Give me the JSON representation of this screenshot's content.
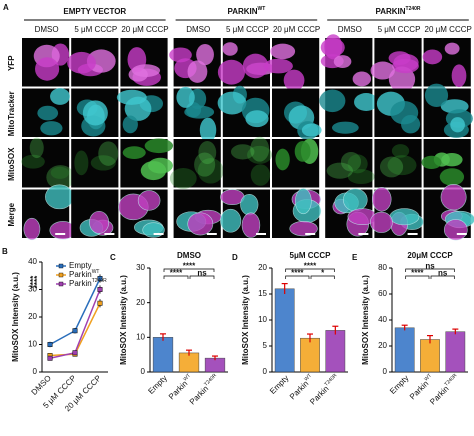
{
  "panel_a": {
    "label": "A",
    "groups": [
      {
        "text": "EMPTY VECTOR"
      },
      {
        "text": "PARKIN",
        "sup": "WT"
      },
      {
        "text": "PARKIN",
        "sup": "T240R"
      }
    ],
    "columns": [
      "DMSO",
      "5 μM CCCP",
      "20 μM CCCP"
    ],
    "rows": [
      "YFP",
      "MitoTracker",
      "MitoSOX",
      "Merge"
    ]
  },
  "chart_data": [
    {
      "type": "line",
      "label": "B",
      "categories": [
        "DMSO",
        "5 μM CCCP",
        "20 μM CCCP"
      ],
      "series": [
        {
          "name": "Empty",
          "color": "#2a6ebb",
          "values": [
            10,
            15,
            34
          ],
          "errors": [
            1,
            1,
            1.5
          ]
        },
        {
          "name": "Parkin",
          "sup": "WT",
          "color": "#f0a020",
          "values": [
            6,
            6.5,
            25
          ],
          "errors": [
            0.8,
            0.8,
            1.5
          ]
        },
        {
          "name": "Parkin",
          "sup": "T240R",
          "color": "#a040b0",
          "values": [
            5,
            7,
            30
          ],
          "errors": [
            0.7,
            0.8,
            1.5
          ]
        }
      ],
      "ylim": [
        0,
        40
      ],
      "yticks": [
        0,
        10,
        20,
        30,
        40
      ],
      "ylabel": "MitoSOX Intensity (a.u.)",
      "annotations": [
        "****",
        "****"
      ]
    },
    {
      "type": "bar",
      "label": "C",
      "title": "DMSO",
      "categories": [
        "Empty",
        "Parkin",
        "Parkin"
      ],
      "category_sups": [
        null,
        "WT",
        "T240R"
      ],
      "colors": [
        "#3a78c8",
        "#f5a623",
        "#9b3fb5"
      ],
      "values": [
        10,
        5.5,
        4
      ],
      "errors": [
        1,
        0.8,
        0.6
      ],
      "ylim": [
        0,
        30
      ],
      "yticks": [
        0,
        10,
        20,
        30
      ],
      "ylabel": "MitoSOX Intensity (a.u.)",
      "significance": [
        "****",
        "ns",
        "****"
      ]
    },
    {
      "type": "bar",
      "label": "D",
      "title": "5μM CCCP",
      "categories": [
        "Empty",
        "Parkin",
        "Parkin"
      ],
      "category_sups": [
        null,
        "WT",
        "T240R"
      ],
      "colors": [
        "#3a78c8",
        "#f5a623",
        "#9b3fb5"
      ],
      "values": [
        16,
        6.5,
        8
      ],
      "errors": [
        1,
        0.8,
        0.8
      ],
      "ylim": [
        0,
        20
      ],
      "yticks": [
        0,
        5,
        10,
        15,
        20
      ],
      "ylabel": "MitoSOX Intensity (a.u.)",
      "significance": [
        "****",
        "*",
        "****"
      ]
    },
    {
      "type": "bar",
      "label": "E",
      "title": "20μM CCCP",
      "categories": [
        "Empty",
        "Parkin",
        "Parkin"
      ],
      "category_sups": [
        null,
        "WT",
        "T240R"
      ],
      "colors": [
        "#3a78c8",
        "#f5a623",
        "#9b3fb5"
      ],
      "values": [
        34,
        25,
        31
      ],
      "errors": [
        2,
        3,
        2
      ],
      "ylim": [
        0,
        80
      ],
      "yticks": [
        0,
        20,
        40,
        60,
        80
      ],
      "ylabel": "MitoSOX Intensity (a.u.)",
      "significance": [
        "****",
        "ns",
        "ns"
      ]
    }
  ]
}
